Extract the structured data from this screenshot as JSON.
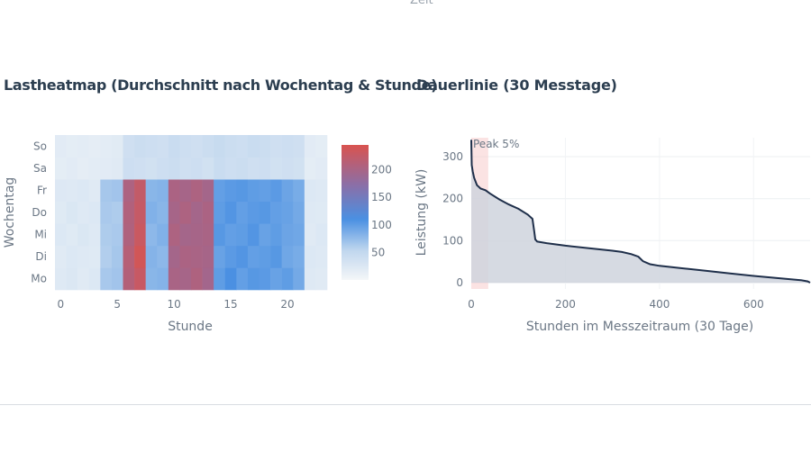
{
  "header_fragment": "Zeit",
  "heatmap_panel": {
    "title": "Lastheatmap (Durchschnitt nach Wochentag & Stunde)"
  },
  "duration_panel": {
    "title": "Dauerlinie (30 Messtage)"
  },
  "colors": {
    "text": "#2c3e50",
    "tick": "#6b7785",
    "line": "#1f2f4a",
    "area": "#cfd4dd",
    "peak_band": "#f7cccc",
    "scale_low": "#f4f6f8",
    "scale_mid": "#4a90e2",
    "scale_high": "#d9534f"
  },
  "chart_data": [
    {
      "type": "heatmap",
      "title": "Lastheatmap (Durchschnitt nach Wochentag & Stunde)",
      "xlabel": "Stunde",
      "ylabel": "Wochentag",
      "x": [
        0,
        1,
        2,
        3,
        4,
        5,
        6,
        7,
        8,
        9,
        10,
        11,
        12,
        13,
        14,
        15,
        16,
        17,
        18,
        19,
        20,
        21,
        22,
        23
      ],
      "x_ticks": [
        0,
        5,
        10,
        15,
        20
      ],
      "y": [
        "Mo",
        "Di",
        "Mi",
        "Do",
        "Fr",
        "Sa",
        "So"
      ],
      "zmin": 0,
      "zmax": 245,
      "colorbar": {
        "ticks": [
          50,
          100,
          150,
          200
        ]
      },
      "values": [
        [
          22,
          25,
          20,
          24,
          65,
          68,
          210,
          228,
          80,
          82,
          200,
          198,
          205,
          195,
          100,
          110,
          98,
          104,
          102,
          96,
          100,
          90,
          22,
          20
        ],
        [
          20,
          24,
          22,
          21,
          60,
          66,
          212,
          238,
          82,
          78,
          196,
          202,
          200,
          198,
          96,
          102,
          106,
          98,
          100,
          104,
          92,
          88,
          24,
          22
        ],
        [
          24,
          21,
          26,
          22,
          62,
          64,
          206,
          230,
          78,
          84,
          204,
          196,
          198,
          200,
          104,
          98,
          100,
          106,
          96,
          100,
          94,
          92,
          20,
          24
        ],
        [
          21,
          26,
          22,
          24,
          64,
          62,
          208,
          226,
          84,
          80,
          198,
          204,
          196,
          202,
          100,
          106,
          98,
          102,
          104,
          98,
          96,
          90,
          22,
          21
        ],
        [
          23,
          22,
          24,
          20,
          66,
          68,
          204,
          224,
          80,
          82,
          202,
          198,
          204,
          196,
          98,
          102,
          104,
          100,
          98,
          102,
          94,
          88,
          24,
          22
        ],
        [
          16,
          18,
          15,
          17,
          18,
          20,
          40,
          38,
          36,
          40,
          42,
          38,
          40,
          36,
          44,
          40,
          42,
          38,
          40,
          36,
          38,
          36,
          16,
          18
        ],
        [
          18,
          16,
          17,
          15,
          17,
          19,
          38,
          42,
          40,
          38,
          44,
          40,
          38,
          42,
          46,
          42,
          40,
          44,
          42,
          38,
          40,
          38,
          18,
          16
        ]
      ]
    },
    {
      "type": "area",
      "title": "Dauerlinie (30 Messtage)",
      "xlabel": "Stunden im Messzeitraum (30 Tage)",
      "ylabel": "Leistung (kW)",
      "xlim": [
        0,
        720
      ],
      "ylim": [
        -15,
        345
      ],
      "x_ticks": [
        0,
        200,
        400,
        600
      ],
      "y_ticks": [
        0,
        100,
        200,
        300
      ],
      "annotation": {
        "text": "Peak 5%",
        "x_range": [
          0,
          36
        ]
      },
      "x": [
        0,
        1,
        3,
        6,
        12,
        20,
        30,
        40,
        60,
        80,
        100,
        120,
        130,
        134,
        136,
        140,
        160,
        200,
        250,
        300,
        320,
        340,
        355,
        365,
        380,
        400,
        450,
        500,
        550,
        600,
        650,
        700,
        715,
        720
      ],
      "y": [
        340,
        280,
        265,
        250,
        232,
        224,
        220,
        212,
        198,
        186,
        176,
        162,
        152,
        120,
        103,
        98,
        94,
        88,
        82,
        76,
        73,
        68,
        62,
        51,
        44,
        40,
        34,
        28,
        22,
        16,
        11,
        6,
        3,
        0
      ]
    }
  ]
}
